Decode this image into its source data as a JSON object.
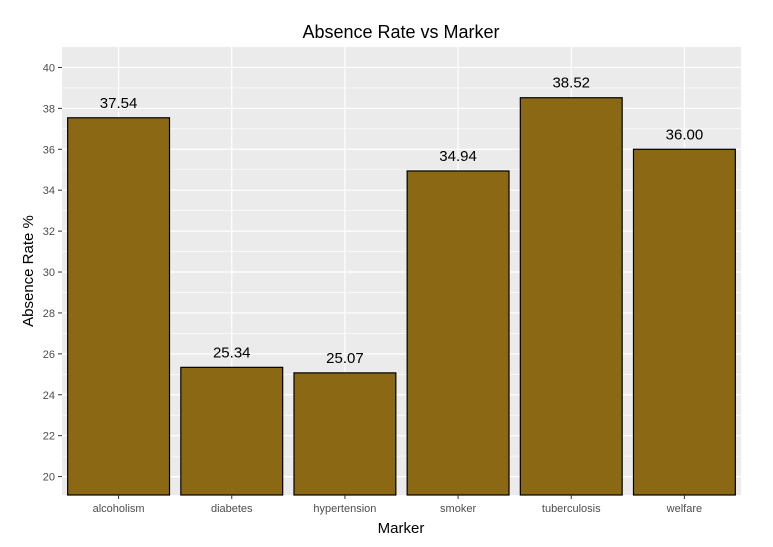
{
  "chart_data": {
    "type": "bar",
    "title": "Absence Rate vs Marker",
    "xlabel": "Marker",
    "ylabel": "Absence Rate %",
    "categories": [
      "alcoholism",
      "diabetes",
      "hypertension",
      "smoker",
      "tuberculosis",
      "welfare"
    ],
    "values": [
      37.54,
      25.34,
      25.07,
      34.94,
      38.52,
      36.0
    ],
    "value_labels": [
      "37.54",
      "25.34",
      "25.07",
      "34.94",
      "38.52",
      "36.00"
    ],
    "ylim": [
      19.1,
      41.0
    ],
    "yticks": [
      20,
      22,
      24,
      26,
      28,
      30,
      32,
      34,
      36,
      38,
      40
    ],
    "grid": true,
    "legend": "none",
    "colors": {
      "bar_fill": "#8B6914",
      "bar_stroke": "#000000",
      "panel_background": "#EBEBEB",
      "grid": "#FFFFFF"
    }
  }
}
